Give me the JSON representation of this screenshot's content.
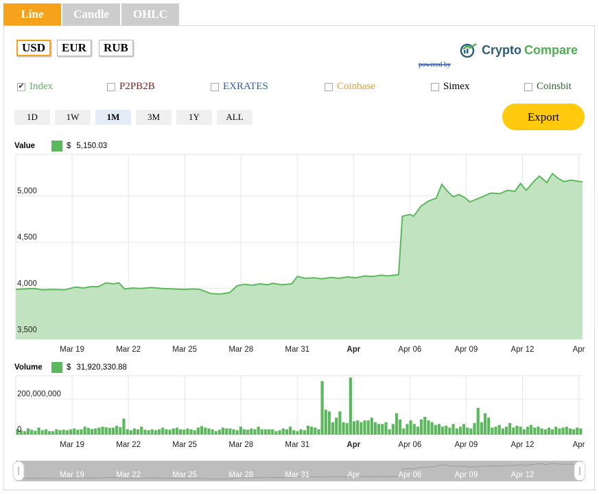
{
  "tabs": [
    "Line",
    "Candle",
    "OHLC"
  ],
  "currencies": [
    "USD",
    "EUR",
    "RUB"
  ],
  "logo": {
    "word1": "Crypto",
    "word2": "Compare",
    "powered_by": "powered by"
  },
  "exchanges": [
    {
      "label": "Index",
      "checked": true,
      "color": "#5cb85c"
    },
    {
      "label": "P2PB2B",
      "checked": false,
      "color": "#8b1a1a"
    },
    {
      "label": "EXRATES",
      "checked": false,
      "color": "#2a5caa"
    },
    {
      "label": "Coinbase",
      "checked": false,
      "color": "#f29b2e"
    },
    {
      "label": "Simex",
      "checked": false,
      "color": "#000000"
    },
    {
      "label": "Coinsbit",
      "checked": false,
      "color": "#2e6b2e"
    }
  ],
  "ranges": [
    "1D",
    "1W",
    "1M",
    "3M",
    "1Y",
    "ALL"
  ],
  "export_label": "Export",
  "value_legend": {
    "label": "Value",
    "currency": "$",
    "value": "5,150.03"
  },
  "volume_legend": {
    "label": "Volume",
    "currency": "$",
    "value": "31,920,330.88"
  },
  "x_tick_labels": [
    "Mar 19",
    "Mar 22",
    "Mar 25",
    "Mar 28",
    "Mar 31",
    "Apr",
    "Apr 06",
    "Apr 09",
    "Apr 12",
    "Apr"
  ],
  "navigator_labels": [
    "Mar 19",
    "Mar 22",
    "Mar 25",
    "Mar 28",
    "Mar 31",
    "Apr",
    "Apr 06",
    "Apr 09",
    "Apr 12"
  ],
  "colors": {
    "accent": "#f7a21b",
    "series": "#5cb85c",
    "fill": "#c1e3bf",
    "export": "#ffc90e"
  },
  "chart_data": [
    {
      "type": "area",
      "ylim": [
        3450,
        5450
      ],
      "y_ticks": [
        "3,500",
        "4,000",
        "4,500",
        "5,000"
      ],
      "y_tick_values": [
        3500,
        4000,
        4500,
        5000
      ],
      "x_start": 16.0,
      "x_end": 46.2,
      "series": [
        {
          "name": "Value",
          "points": [
            [
              16.0,
              3990
            ],
            [
              16.4,
              3995
            ],
            [
              17.0,
              4000
            ],
            [
              17.4,
              3985
            ],
            [
              18.0,
              3990
            ],
            [
              18.6,
              3985
            ],
            [
              19.2,
              4015
            ],
            [
              19.6,
              4005
            ],
            [
              20.0,
              4020
            ],
            [
              20.4,
              4020
            ],
            [
              20.8,
              4060
            ],
            [
              21.2,
              4050
            ],
            [
              21.5,
              4060
            ],
            [
              21.8,
              3995
            ],
            [
              22.2,
              4005
            ],
            [
              22.7,
              4000
            ],
            [
              23.2,
              4010
            ],
            [
              23.8,
              4000
            ],
            [
              24.4,
              3995
            ],
            [
              25.0,
              3990
            ],
            [
              25.4,
              3995
            ],
            [
              25.8,
              3990
            ],
            [
              26.4,
              3945
            ],
            [
              26.9,
              3940
            ],
            [
              27.4,
              3955
            ],
            [
              27.8,
              4030
            ],
            [
              28.2,
              4045
            ],
            [
              28.6,
              4035
            ],
            [
              29.0,
              4050
            ],
            [
              29.4,
              4040
            ],
            [
              29.7,
              4055
            ],
            [
              30.2,
              4040
            ],
            [
              30.7,
              4050
            ],
            [
              31.0,
              4130
            ],
            [
              31.4,
              4110
            ],
            [
              31.9,
              4115
            ],
            [
              32.3,
              4105
            ],
            [
              32.8,
              4120
            ],
            [
              33.2,
              4110
            ],
            [
              33.7,
              4125
            ],
            [
              34.1,
              4115
            ],
            [
              34.6,
              4135
            ],
            [
              35.0,
              4130
            ],
            [
              35.5,
              4145
            ],
            [
              35.8,
              4135
            ],
            [
              36.2,
              4145
            ],
            [
              36.4,
              4150
            ],
            [
              36.6,
              4780
            ],
            [
              37.0,
              4800
            ],
            [
              37.2,
              4780
            ],
            [
              37.6,
              4890
            ],
            [
              38.0,
              4945
            ],
            [
              38.4,
              4975
            ],
            [
              38.7,
              5125
            ],
            [
              39.0,
              5050
            ],
            [
              39.3,
              4990
            ],
            [
              39.6,
              5015
            ],
            [
              39.9,
              4985
            ],
            [
              40.2,
              4935
            ],
            [
              40.5,
              4960
            ],
            [
              40.8,
              4985
            ],
            [
              41.3,
              5030
            ],
            [
              41.8,
              5025
            ],
            [
              42.2,
              5060
            ],
            [
              42.6,
              5050
            ],
            [
              42.9,
              5135
            ],
            [
              43.2,
              5060
            ],
            [
              43.6,
              5155
            ],
            [
              43.9,
              5215
            ],
            [
              44.3,
              5145
            ],
            [
              44.6,
              5240
            ],
            [
              44.9,
              5190
            ],
            [
              45.2,
              5155
            ],
            [
              45.6,
              5170
            ],
            [
              45.9,
              5160
            ],
            [
              46.2,
              5150
            ]
          ]
        }
      ]
    },
    {
      "type": "bar",
      "y_ticks": [
        "0",
        "200,000,000"
      ],
      "y_tick_values": [
        0,
        200000000
      ],
      "ylim": [
        0,
        330000000
      ],
      "series": [
        {
          "name": "Volume",
          "values": [
            30000000,
            25000000,
            20000000,
            35000000,
            28000000,
            22000000,
            40000000,
            25000000,
            30000000,
            20000000,
            20000000,
            30000000,
            25000000,
            28000000,
            25000000,
            30000000,
            35000000,
            28000000,
            30000000,
            45000000,
            38000000,
            32000000,
            35000000,
            40000000,
            45000000,
            42000000,
            38000000,
            40000000,
            50000000,
            42000000,
            90000000,
            30000000,
            25000000,
            35000000,
            30000000,
            45000000,
            28000000,
            25000000,
            30000000,
            25000000,
            30000000,
            40000000,
            30000000,
            28000000,
            35000000,
            40000000,
            30000000,
            28000000,
            35000000,
            30000000,
            25000000,
            40000000,
            48000000,
            40000000,
            35000000,
            30000000,
            20000000,
            28000000,
            40000000,
            35000000,
            35000000,
            30000000,
            25000000,
            45000000,
            30000000,
            28000000,
            35000000,
            30000000,
            45000000,
            30000000,
            30000000,
            30000000,
            30000000,
            20000000,
            25000000,
            35000000,
            30000000,
            45000000,
            25000000,
            20000000,
            30000000,
            25000000,
            50000000,
            45000000,
            40000000,
            30000000,
            300000000,
            140000000,
            130000000,
            70000000,
            95000000,
            130000000,
            70000000,
            65000000,
            320000000,
            75000000,
            80000000,
            70000000,
            80000000,
            80000000,
            95000000,
            70000000,
            60000000,
            60000000,
            70000000,
            30000000,
            60000000,
            120000000,
            85000000,
            35000000,
            60000000,
            80000000,
            60000000,
            45000000,
            85000000,
            100000000,
            80000000,
            70000000,
            55000000,
            60000000,
            45000000,
            50000000,
            40000000,
            60000000,
            35000000,
            45000000,
            60000000,
            40000000,
            35000000,
            65000000,
            150000000,
            70000000,
            120000000,
            95000000,
            40000000,
            45000000,
            55000000,
            35000000,
            45000000,
            65000000,
            40000000,
            50000000,
            45000000,
            30000000,
            45000000,
            55000000,
            40000000,
            45000000,
            35000000,
            30000000,
            40000000,
            30000000,
            45000000,
            35000000,
            40000000,
            45000000,
            35000000,
            30000000,
            40000000,
            35000000
          ]
        }
      ]
    }
  ]
}
